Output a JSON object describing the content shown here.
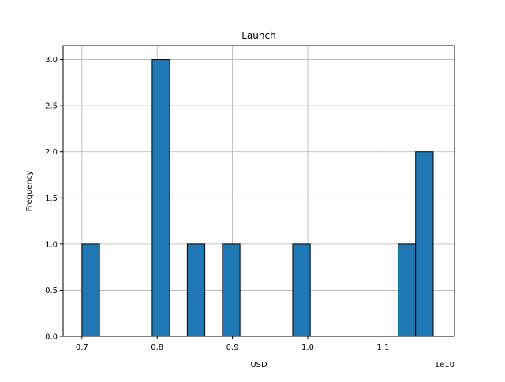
{
  "chart_data": {
    "type": "bar",
    "subtype": "histogram",
    "title": "Launch",
    "xlabel": "USD",
    "ylabel": "Frequency",
    "x_offset_label": "1e10",
    "x_scale_multiplier": 10000000000,
    "xlim": [
      6.75,
      11.95
    ],
    "ylim": [
      0,
      3.15
    ],
    "bins": [
      {
        "start": 7.0,
        "end": 7.2333,
        "count": 1
      },
      {
        "start": 7.9333,
        "end": 8.1667,
        "count": 3
      },
      {
        "start": 8.4,
        "end": 8.6333,
        "count": 1
      },
      {
        "start": 8.8667,
        "end": 9.1,
        "count": 1
      },
      {
        "start": 9.8,
        "end": 10.0333,
        "count": 1
      },
      {
        "start": 11.2,
        "end": 11.4333,
        "count": 1
      },
      {
        "start": 11.4333,
        "end": 11.6667,
        "count": 2
      }
    ],
    "x_ticks": [
      {
        "value": 7.0,
        "label": "0.7"
      },
      {
        "value": 8.0,
        "label": "0.8"
      },
      {
        "value": 9.0,
        "label": "0.9"
      },
      {
        "value": 10.0,
        "label": "1.0"
      },
      {
        "value": 11.0,
        "label": "1.1"
      }
    ],
    "y_ticks": [
      {
        "value": 0.0,
        "label": "0.0"
      },
      {
        "value": 0.5,
        "label": "0.5"
      },
      {
        "value": 1.0,
        "label": "1.0"
      },
      {
        "value": 1.5,
        "label": "1.5"
      },
      {
        "value": 2.0,
        "label": "2.0"
      },
      {
        "value": 2.5,
        "label": "2.5"
      },
      {
        "value": 3.0,
        "label": "3.0"
      }
    ],
    "grid": true,
    "colors": {
      "bar_fill": "#1f77b4",
      "bar_edge": "#000000",
      "grid": "#b0b0b0",
      "axes": "#000000"
    }
  }
}
